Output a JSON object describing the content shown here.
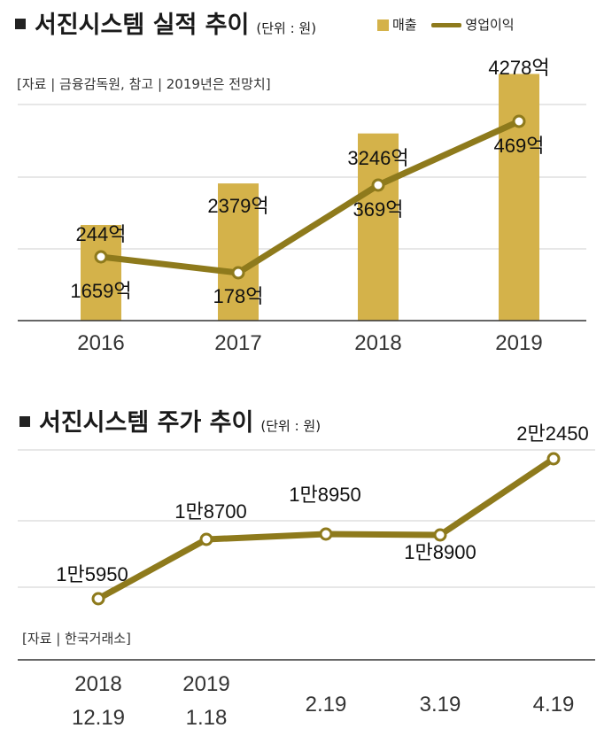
{
  "colors": {
    "bar": "#D4B24A",
    "line": "#8E7A1C",
    "grid": "#cfcfcf",
    "axis": "#333333"
  },
  "chart_data": [
    {
      "type": "bar",
      "title": "서진시스템 실적 추이",
      "unit": "(단위 : 원)",
      "source": "[자료 | 금융감독원, 참고 | 2019년은 전망치]",
      "legend": [
        "매출",
        "영업이익"
      ],
      "legend_position": "top-right",
      "categories": [
        "2016",
        "2017",
        "2018",
        "2019"
      ],
      "series": [
        {
          "name": "매출",
          "type": "bar",
          "values": [
            1659,
            2379,
            3246,
            4278
          ],
          "labels": [
            "1659억",
            "2379억",
            "3246억",
            "4278억"
          ]
        },
        {
          "name": "영업이익",
          "type": "line",
          "values": [
            244,
            178,
            369,
            469
          ],
          "labels": [
            "244억",
            "178억",
            "369억",
            "469억"
          ]
        }
      ],
      "grid": true
    },
    {
      "type": "line",
      "title": "서진시스템 주가 추이",
      "unit": "(단위 : 원)",
      "source": "[자료 | 한국거래소]",
      "categories": [
        "2018 12.19",
        "2019 1.18",
        "2.19",
        "3.19",
        "4.19"
      ],
      "category_lines": [
        [
          "2018",
          "12.19"
        ],
        [
          "2019",
          "1.18"
        ],
        [
          "2.19"
        ],
        [
          "3.19"
        ],
        [
          "4.19"
        ]
      ],
      "values": [
        15950,
        18700,
        18950,
        18900,
        22450
      ],
      "labels": [
        "1만5950",
        "1만8700",
        "1만8950",
        "1만8900",
        "2만2450"
      ],
      "grid": true
    }
  ]
}
